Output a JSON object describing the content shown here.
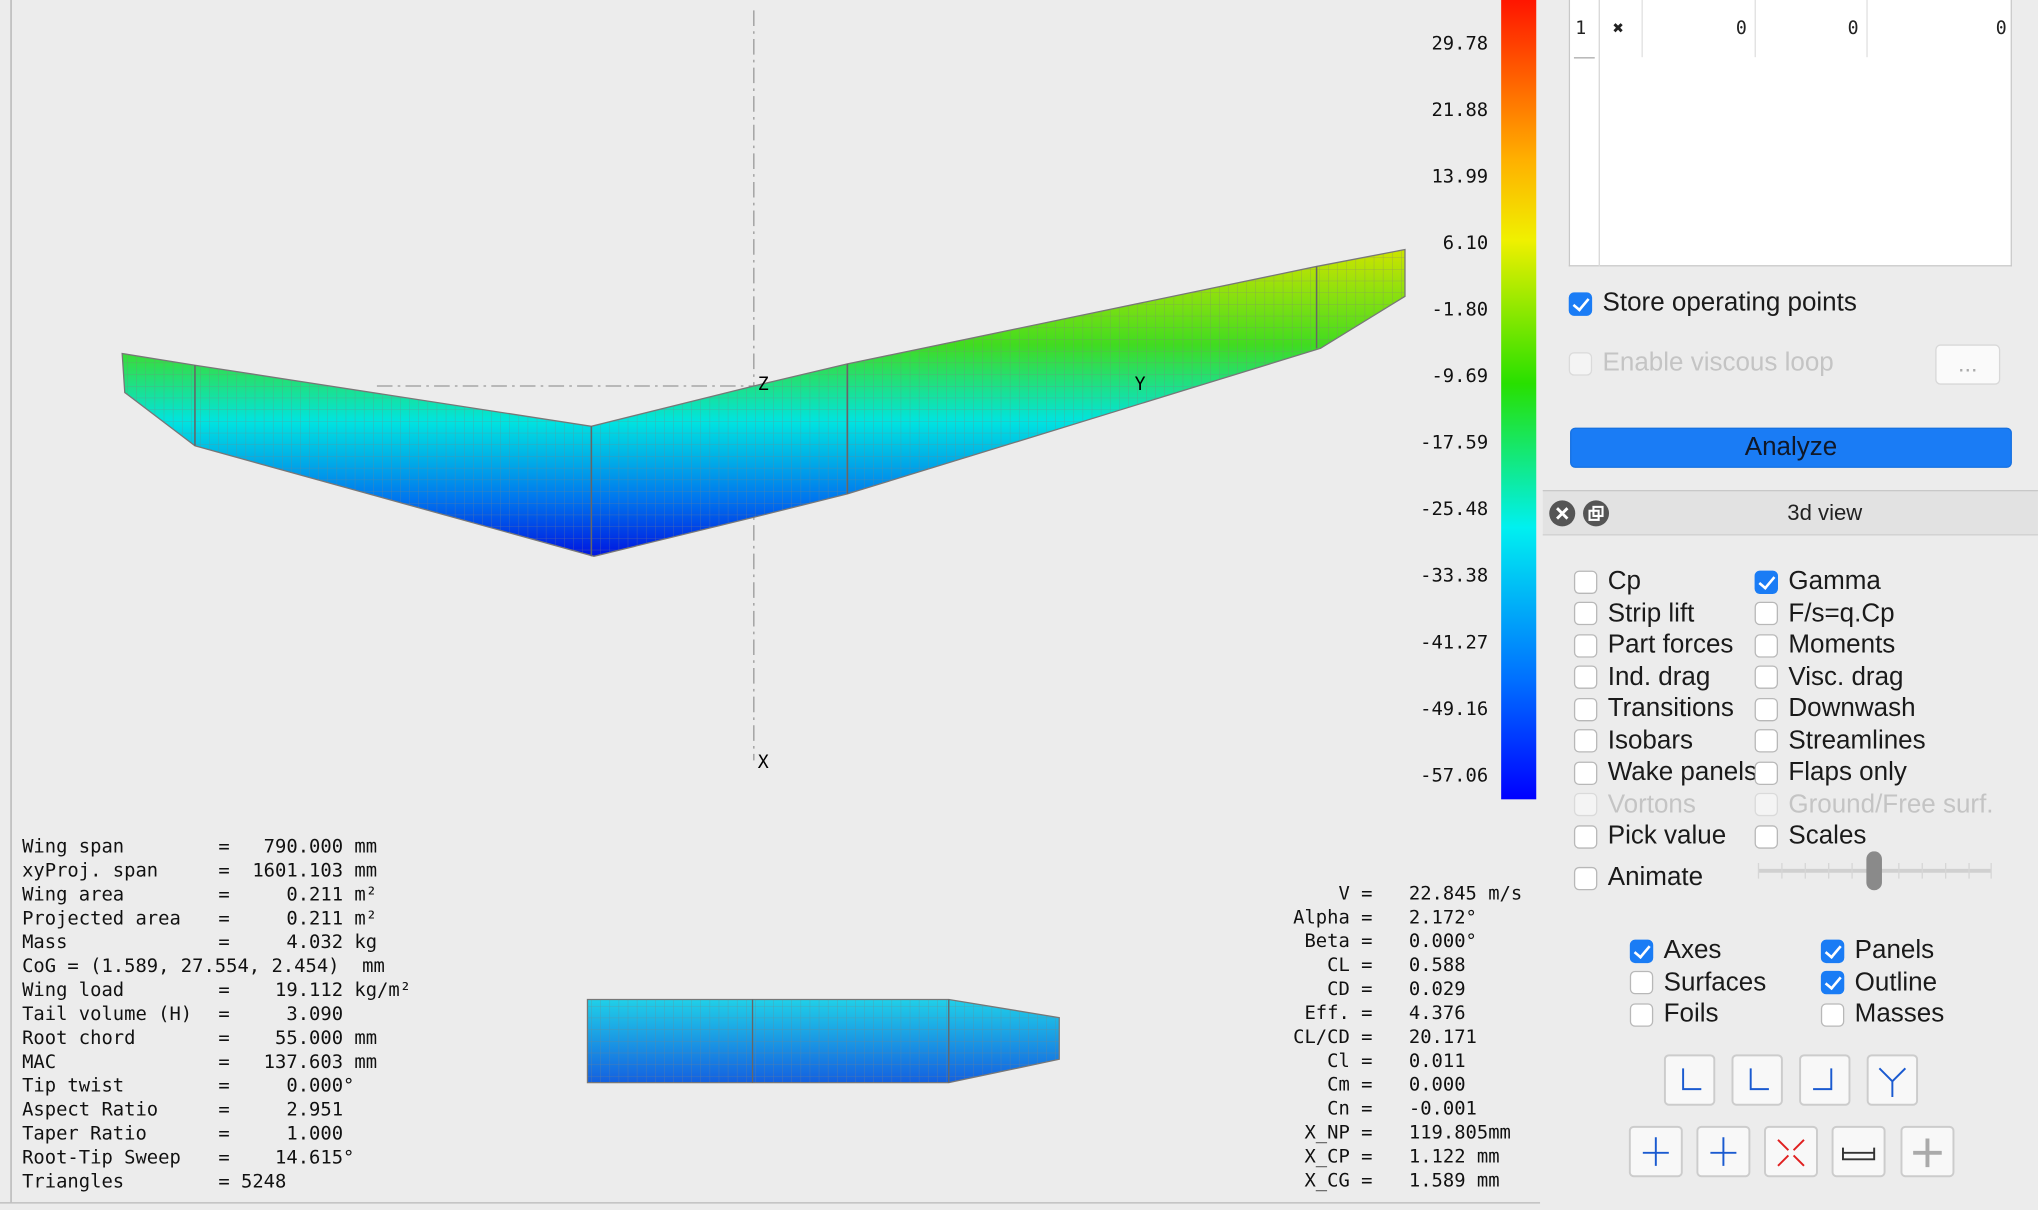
{
  "view3d": {
    "colorbar_labels": [
      "29.78",
      "21.88",
      "13.99",
      "6.10",
      "-1.80",
      "-9.69",
      "-17.59",
      "-25.48",
      "-33.38",
      "-41.27",
      "-49.16",
      "-57.06"
    ],
    "axis_labels": {
      "z": "Z",
      "y": "Y",
      "x": "X"
    },
    "wing_info": [
      {
        "label": "Wing span",
        "value": "=   790.000 mm"
      },
      {
        "label": "xyProj. span",
        "value": "=  1601.103 mm"
      },
      {
        "label": "Wing area",
        "value": "=     0.211 m²"
      },
      {
        "label": "Projected area",
        "value": "=     0.211 m²"
      },
      {
        "label": "Mass",
        "value": "=     4.032 kg"
      },
      {
        "label": "CoG = (1.589, 27.554, 2.454)  mm"
      },
      {
        "label": "Wing load",
        "value": "=    19.112 kg/m²"
      },
      {
        "label": "Tail volume (H)",
        "value": "=     3.090"
      },
      {
        "label": "Root chord",
        "value": "=    55.000 mm"
      },
      {
        "label": "MAC",
        "value": "=   137.603 mm"
      },
      {
        "label": "Tip twist",
        "value": "=     0.000°"
      },
      {
        "label": "Aspect Ratio",
        "value": "=     2.951"
      },
      {
        "label": "Taper Ratio",
        "value": "=     1.000"
      },
      {
        "label": "Root-Tip Sweep",
        "value": "=    14.615°"
      },
      {
        "label": "Triangles",
        "value": "= 5248"
      }
    ],
    "results": [
      {
        "label": "V =",
        "value": "22.845 m/s"
      },
      {
        "label": "Alpha =",
        "value": "2.172°"
      },
      {
        "label": "Beta =",
        "value": "0.000°"
      },
      {
        "label": "CL =",
        "value": "0.588"
      },
      {
        "label": "CD =",
        "value": "0.029"
      },
      {
        "label": "Eff. =",
        "value": "4.376"
      },
      {
        "label": "CL/CD =",
        "value": "20.171"
      },
      {
        "label": "Cl =",
        "value": "0.011"
      },
      {
        "label": "Cm =",
        "value": "0.000"
      },
      {
        "label": "Cn =",
        "value": "-0.001"
      },
      {
        "label": "X_NP =",
        "value": "119.805mm"
      },
      {
        "label": "X_CP =",
        "value": "1.122 mm"
      },
      {
        "label": "X_CG =",
        "value": "1.589 mm"
      }
    ]
  },
  "settings_panel": {
    "table": {
      "rows": [
        [
          "1",
          "✖",
          "0",
          "0",
          "0"
        ]
      ]
    },
    "store_points": {
      "label": "Store operating points",
      "checked": true,
      "enabled": true
    },
    "viscous_loop": {
      "label": "Enable viscous loop",
      "checked": false,
      "enabled": false
    },
    "more_button": "...",
    "analyze_button": "Analyze"
  },
  "view_panel": {
    "title": "3d view",
    "options": [
      [
        {
          "label": "Cp",
          "checked": false,
          "enabled": true
        },
        {
          "label": "Gamma",
          "checked": true,
          "enabled": true
        }
      ],
      [
        {
          "label": "Strip lift",
          "checked": false,
          "enabled": true
        },
        {
          "label": "F/s=q.Cp",
          "checked": false,
          "enabled": true
        }
      ],
      [
        {
          "label": "Part forces",
          "checked": false,
          "enabled": true
        },
        {
          "label": "Moments",
          "checked": false,
          "enabled": true
        }
      ],
      [
        {
          "label": "Ind. drag",
          "checked": false,
          "enabled": true
        },
        {
          "label": "Visc. drag",
          "checked": false,
          "enabled": true
        }
      ],
      [
        {
          "label": "Transitions",
          "checked": false,
          "enabled": true
        },
        {
          "label": "Downwash",
          "checked": false,
          "enabled": true
        }
      ],
      [
        {
          "label": "Isobars",
          "checked": false,
          "enabled": true
        },
        {
          "label": "Streamlines",
          "checked": false,
          "enabled": true
        }
      ],
      [
        {
          "label": "Wake panels",
          "checked": false,
          "enabled": true
        },
        {
          "label": "Flaps only",
          "checked": false,
          "enabled": true
        }
      ],
      [
        {
          "label": "Vortons",
          "checked": false,
          "enabled": false
        },
        {
          "label": "Ground/Free surf.",
          "checked": false,
          "enabled": false
        }
      ],
      [
        {
          "label": "Pick value",
          "checked": false,
          "enabled": true
        },
        {
          "label": "Scales",
          "checked": false,
          "enabled": true
        }
      ]
    ],
    "animate": {
      "label": "Animate",
      "checked": false,
      "enabled": true
    },
    "display_options": [
      [
        {
          "label": "Axes",
          "checked": true,
          "enabled": true
        },
        {
          "label": "Panels",
          "checked": true,
          "enabled": true
        }
      ],
      [
        {
          "label": "Surfaces",
          "checked": false,
          "enabled": true
        },
        {
          "label": "Outline",
          "checked": true,
          "enabled": true
        }
      ],
      [
        {
          "label": "Foils",
          "checked": false,
          "enabled": true
        },
        {
          "label": "Masses",
          "checked": false,
          "enabled": true
        }
      ]
    ]
  }
}
